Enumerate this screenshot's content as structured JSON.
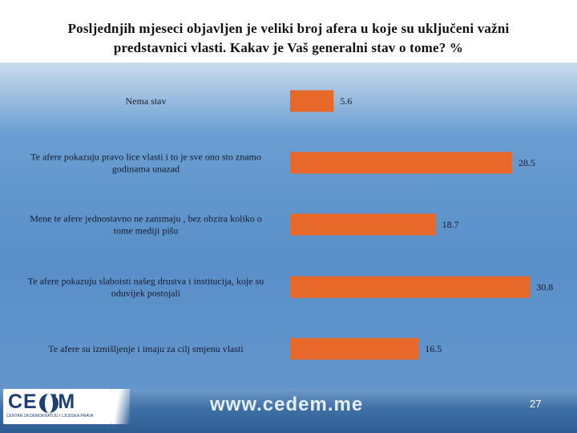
{
  "title": {
    "line1": "Posljednjih mjeseci objavljen je veliki broj afera u koje su uključeni važni",
    "line2": "predstavnici vlasti. Kakav je Vaš generalni stav o tome? %"
  },
  "chart_data": {
    "type": "bar",
    "orientation": "horizontal",
    "categories": [
      [
        "Nema stav"
      ],
      [
        "Te afere pokazuju pravo lice vlasti i to je sve ono sto znamo",
        "godinama unazad"
      ],
      [
        "Mene te afere jednostavno ne zanimaju , bez obzira koliko o",
        "tome mediji pišu"
      ],
      [
        "Te afere pokazuju slaboisti našeg drustva i institucija, koje su",
        "oduvijek postojali"
      ],
      [
        "Te afere su izmišljenje i imaju za cilj smjenu vlasti"
      ]
    ],
    "values": [
      5.6,
      28.5,
      18.7,
      30.8,
      16.5
    ],
    "value_labels": [
      "5.6",
      "28.5",
      "18.7",
      "30.8",
      "16.5"
    ],
    "xlim": [
      0,
      31.5
    ],
    "bar_color": "#e8682a",
    "grid": false,
    "legend": "none"
  },
  "footer": {
    "logo_text": "CE  EM",
    "logo_subtext": "CENTAR ZA DEMOKRATIJU I LJUDSKA PRAVA",
    "website": "www.cedem.me",
    "page_number": "27"
  }
}
